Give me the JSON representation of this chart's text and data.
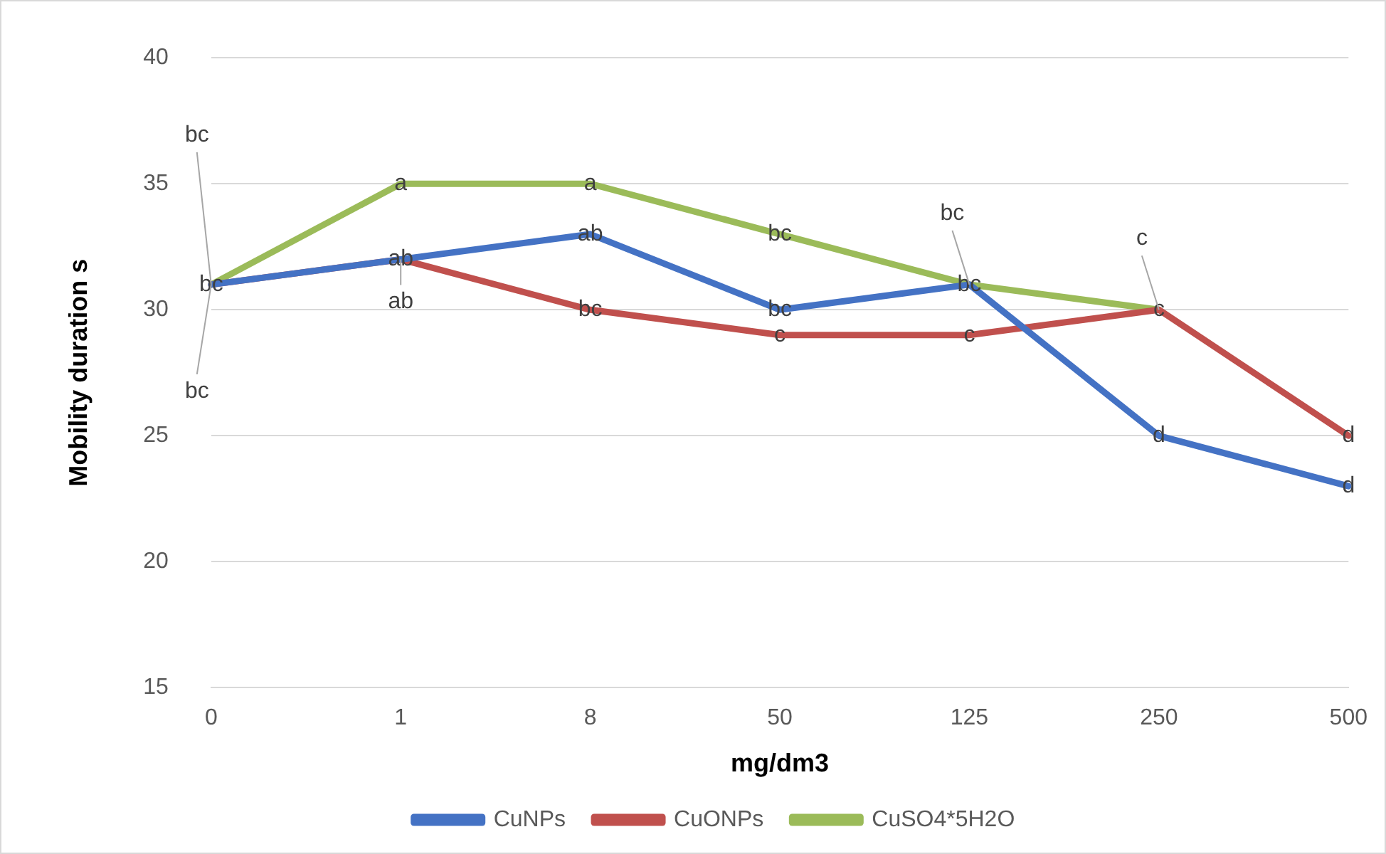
{
  "chart_data": {
    "type": "line",
    "xlabel": "mg/dm3",
    "ylabel": "Mobility duration s",
    "categories": [
      "0",
      "1",
      "8",
      "50",
      "125",
      "250",
      "500"
    ],
    "series": [
      {
        "name": "CuNPs",
        "color": "#4472c4",
        "values": [
          31,
          32,
          33,
          30,
          31,
          25,
          23
        ]
      },
      {
        "name": "CuONPs",
        "color": "#c0504d",
        "values": [
          31,
          32,
          30,
          29,
          29,
          30,
          25
        ]
      },
      {
        "name": "CuSO4*5H2O",
        "color": "#9bbb59",
        "values": [
          31,
          35,
          35,
          33,
          31,
          30,
          null
        ]
      }
    ],
    "ylim": [
      15,
      40
    ],
    "yticks": [
      15,
      20,
      25,
      30,
      35,
      40
    ],
    "grid": "y",
    "legend": "bottom",
    "marker": "none",
    "line_style": "solid",
    "annotations": [
      {
        "text": "bc",
        "x": "0",
        "y": 31
      },
      {
        "text": "bc",
        "x": "0",
        "y": 31
      },
      {
        "text": "bc",
        "x": "0",
        "y": 31
      },
      {
        "text": "a",
        "x": "1",
        "y": 35
      },
      {
        "text": "ab",
        "x": "1",
        "y": 32
      },
      {
        "text": "ab",
        "x": "1",
        "y": 32
      },
      {
        "text": "a",
        "x": "8",
        "y": 35
      },
      {
        "text": "ab",
        "x": "8",
        "y": 33
      },
      {
        "text": "bc",
        "x": "8",
        "y": 30
      },
      {
        "text": "bc",
        "x": "50",
        "y": 33
      },
      {
        "text": "bc",
        "x": "50",
        "y": 30
      },
      {
        "text": "c",
        "x": "50",
        "y": 29
      },
      {
        "text": "bc",
        "x": "125",
        "y": 31
      },
      {
        "text": "bc",
        "x": "125",
        "y": 31
      },
      {
        "text": "c",
        "x": "125",
        "y": 29
      },
      {
        "text": "c",
        "x": "250",
        "y": 30
      },
      {
        "text": "c",
        "x": "250",
        "y": 30
      },
      {
        "text": "d",
        "x": "250",
        "y": 25
      },
      {
        "text": "d",
        "x": "500",
        "y": 25
      },
      {
        "text": "d",
        "x": "500",
        "y": 23
      }
    ]
  }
}
